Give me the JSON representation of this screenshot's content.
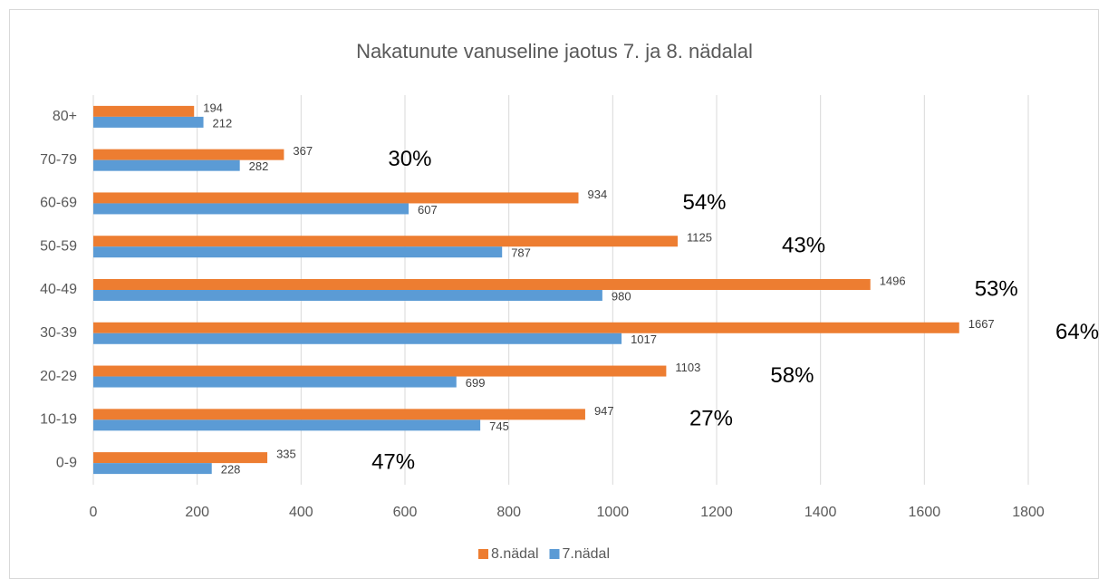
{
  "chart_data": {
    "type": "bar",
    "orientation": "horizontal",
    "title": "Nakatunute vanuseline jaotus 7. ja 8. nädalal",
    "categories": [
      "0-9",
      "10-19",
      "20-29",
      "30-39",
      "40-49",
      "50-59",
      "60-69",
      "70-79",
      "80+"
    ],
    "series": [
      {
        "name": "8.nädal",
        "color": "#ed7d31",
        "values": [
          335,
          947,
          1103,
          1667,
          1496,
          1125,
          934,
          367,
          194
        ]
      },
      {
        "name": "7.nädal",
        "color": "#5b9bd5",
        "values": [
          228,
          745,
          699,
          1017,
          980,
          787,
          607,
          282,
          212
        ]
      }
    ],
    "annotations": [
      "47%",
      "27%",
      "58%",
      "64%",
      "53%",
      "43%",
      "54%",
      "30%",
      null
    ],
    "xlim": [
      0,
      1800
    ],
    "xticks": [
      0,
      200,
      400,
      600,
      800,
      1000,
      1200,
      1400,
      1600,
      1800
    ],
    "grid": true,
    "legend": "bottom"
  }
}
